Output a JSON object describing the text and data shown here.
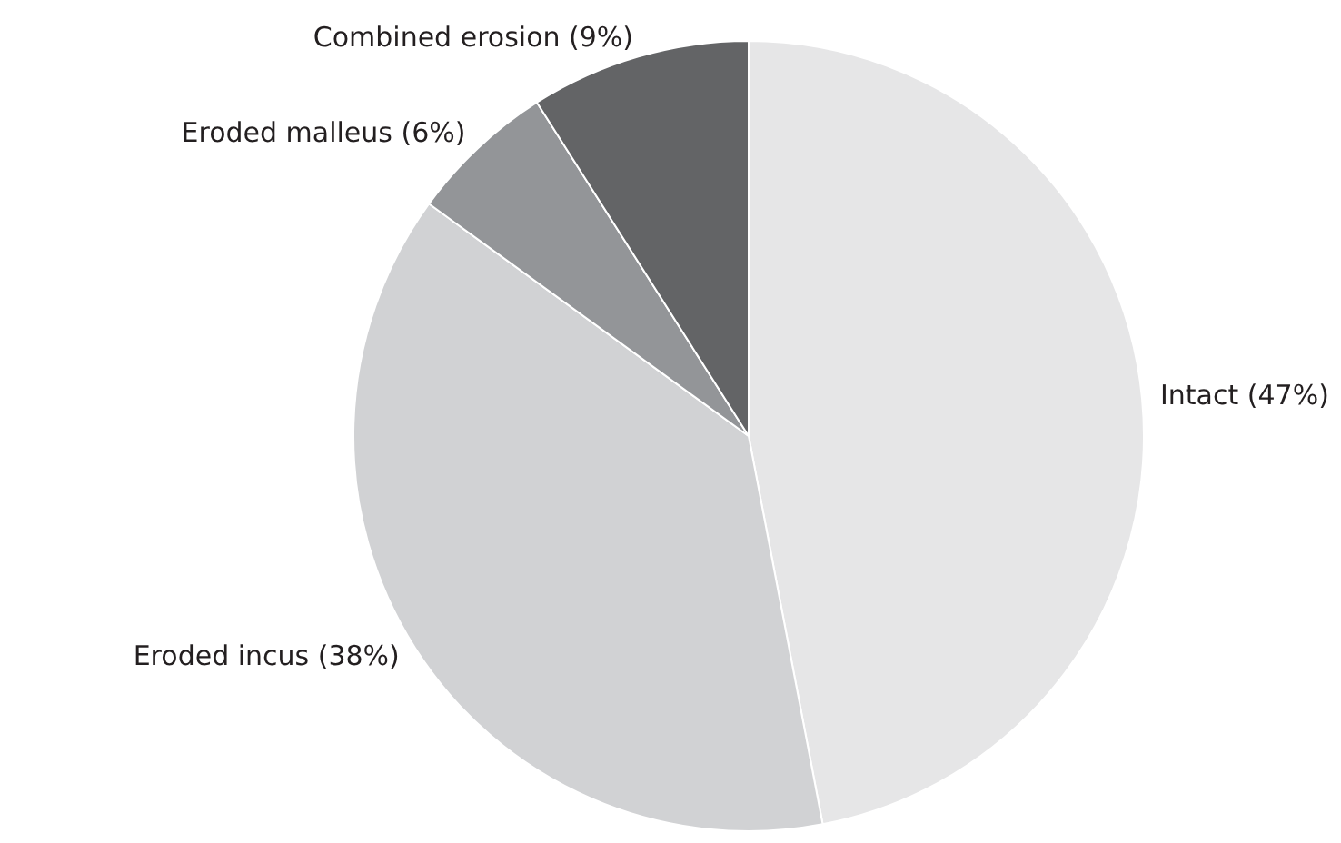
{
  "chart_data": {
    "type": "pie",
    "categories": [
      "Intact (47%)",
      "Eroded incus (38%)",
      "Eroded malleus (6%)",
      "Combined erosion (9%)"
    ],
    "values": [
      47,
      38,
      6,
      9
    ],
    "colors": [
      "#e6e6e7",
      "#d1d2d4",
      "#939598",
      "#636466"
    ]
  }
}
